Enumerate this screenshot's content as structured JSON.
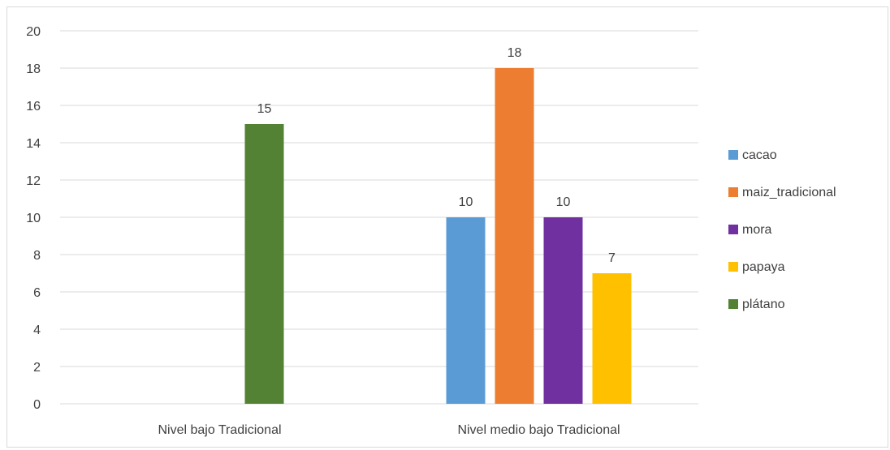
{
  "chart_data": {
    "type": "bar",
    "categories": [
      "Nivel bajo Tradicional",
      "Nivel medio bajo Tradicional"
    ],
    "series": [
      {
        "name": "cacao",
        "color": "#5b9bd5",
        "values": [
          null,
          10
        ]
      },
      {
        "name": "maiz_tradicional",
        "color": "#ed7d31",
        "values": [
          null,
          18
        ]
      },
      {
        "name": "mora",
        "color": "#7030a0",
        "values": [
          null,
          10
        ]
      },
      {
        "name": "papaya",
        "color": "#ffc000",
        "values": [
          null,
          7
        ]
      },
      {
        "name": "plátano",
        "color": "#548235",
        "values": [
          15,
          null
        ]
      }
    ],
    "ylim": [
      0,
      20
    ],
    "yticks": [
      0,
      2,
      4,
      6,
      8,
      10,
      12,
      14,
      16,
      18,
      20
    ],
    "grid": true,
    "legend_position": "right",
    "data_labels": true
  }
}
